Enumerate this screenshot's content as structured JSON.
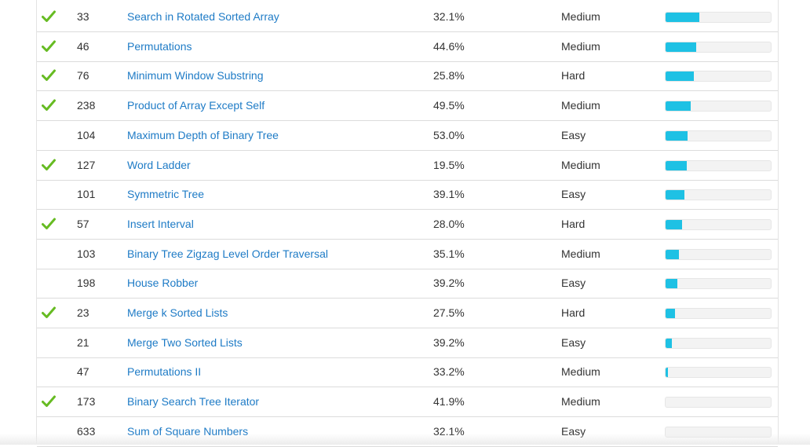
{
  "problems": [
    {
      "solved": true,
      "id": "33",
      "title": "Search in Rotated Sorted Array",
      "acceptance": "32.1%",
      "difficulty": "Medium",
      "frequency": 0.32
    },
    {
      "solved": true,
      "id": "46",
      "title": "Permutations",
      "acceptance": "44.6%",
      "difficulty": "Medium",
      "frequency": 0.29
    },
    {
      "solved": true,
      "id": "76",
      "title": "Minimum Window Substring",
      "acceptance": "25.8%",
      "difficulty": "Hard",
      "frequency": 0.27
    },
    {
      "solved": true,
      "id": "238",
      "title": "Product of Array Except Self",
      "acceptance": "49.5%",
      "difficulty": "Medium",
      "frequency": 0.24
    },
    {
      "solved": false,
      "id": "104",
      "title": "Maximum Depth of Binary Tree",
      "acceptance": "53.0%",
      "difficulty": "Easy",
      "frequency": 0.21
    },
    {
      "solved": true,
      "id": "127",
      "title": "Word Ladder",
      "acceptance": "19.5%",
      "difficulty": "Medium",
      "frequency": 0.2
    },
    {
      "solved": false,
      "id": "101",
      "title": "Symmetric Tree",
      "acceptance": "39.1%",
      "difficulty": "Easy",
      "frequency": 0.18
    },
    {
      "solved": true,
      "id": "57",
      "title": "Insert Interval",
      "acceptance": "28.0%",
      "difficulty": "Hard",
      "frequency": 0.16
    },
    {
      "solved": false,
      "id": "103",
      "title": "Binary Tree Zigzag Level Order Traversal",
      "acceptance": "35.1%",
      "difficulty": "Medium",
      "frequency": 0.13
    },
    {
      "solved": false,
      "id": "198",
      "title": "House Robber",
      "acceptance": "39.2%",
      "difficulty": "Easy",
      "frequency": 0.11
    },
    {
      "solved": true,
      "id": "23",
      "title": "Merge k Sorted Lists",
      "acceptance": "27.5%",
      "difficulty": "Hard",
      "frequency": 0.09
    },
    {
      "solved": false,
      "id": "21",
      "title": "Merge Two Sorted Lists",
      "acceptance": "39.2%",
      "difficulty": "Easy",
      "frequency": 0.06
    },
    {
      "solved": false,
      "id": "47",
      "title": "Permutations II",
      "acceptance": "33.2%",
      "difficulty": "Medium",
      "frequency": 0.02
    },
    {
      "solved": true,
      "id": "173",
      "title": "Binary Search Tree Iterator",
      "acceptance": "41.9%",
      "difficulty": "Medium",
      "frequency": 0.0
    },
    {
      "solved": false,
      "id": "633",
      "title": "Sum of Square Numbers",
      "acceptance": "32.1%",
      "difficulty": "Easy",
      "frequency": 0.0
    }
  ],
  "colors": {
    "link": "#1e7bc6",
    "check": "#66bb22",
    "bar_fill": "#1ec1e4",
    "bar_track": "#f3f3f3"
  },
  "icons": {
    "solved": "checkmark-icon"
  }
}
